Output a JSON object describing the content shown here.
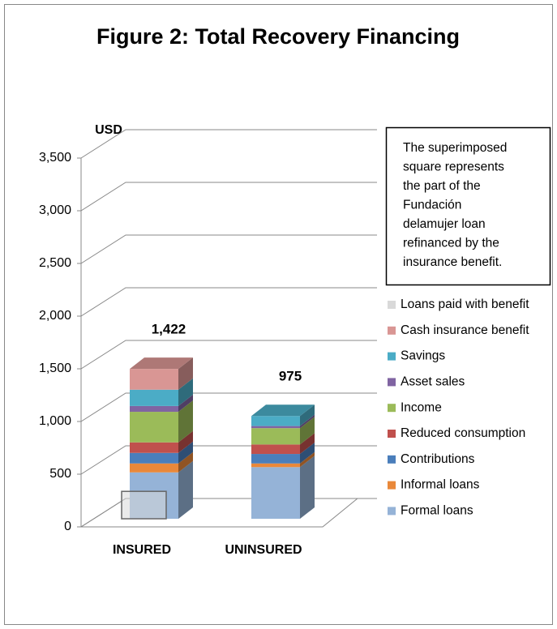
{
  "chart_data": {
    "type": "bar3d_stacked",
    "title": "Figure 2: Total Recovery Financing",
    "y_label": "USD",
    "categories": [
      "INSURED",
      "UNINSURED"
    ],
    "series": [
      {
        "name": "Formal loans",
        "color": "#95b3d7",
        "values": [
          440,
          490
        ]
      },
      {
        "name": "Informal loans",
        "color": "#e9883a",
        "values": [
          85,
          35
        ]
      },
      {
        "name": "Contributions",
        "color": "#4a7ebb",
        "values": [
          100,
          90
        ]
      },
      {
        "name": "Reduced consumption",
        "color": "#c0504d",
        "values": [
          100,
          90
        ]
      },
      {
        "name": "Income",
        "color": "#9bbb59",
        "values": [
          290,
          155
        ]
      },
      {
        "name": "Asset sales",
        "color": "#8064a2",
        "values": [
          55,
          20
        ]
      },
      {
        "name": "Savings",
        "color": "#4bacc6",
        "values": [
          155,
          95
        ]
      },
      {
        "name": "Cash insurance benefit",
        "color": "#d99694",
        "values": [
          197,
          0
        ]
      }
    ],
    "overlay_series": {
      "name": "Loans paid with benefit",
      "color": "#d9d9d9",
      "values": [
        260,
        null
      ]
    },
    "totals": [
      1422,
      975
    ],
    "totals_labels": [
      "1,422",
      "975"
    ],
    "ylim": [
      0,
      3500
    ],
    "yticks": [
      0,
      500,
      {
        "value": 1000,
        "label": "1,000"
      },
      {
        "value": 1500,
        "label": "1,500"
      },
      {
        "value": 2000,
        "label": "2,000"
      },
      {
        "value": 2500,
        "label": "2,500"
      },
      {
        "value": 3000,
        "label": "3,000"
      },
      {
        "value": 3500,
        "label": "3,500"
      }
    ],
    "grid": true,
    "legend": "right",
    "note_lines": [
      "The superimposed",
      "square represents",
      "the part of the",
      "Fundación",
      "delamujer loan",
      "refinanced by the",
      "insurance benefit."
    ]
  }
}
